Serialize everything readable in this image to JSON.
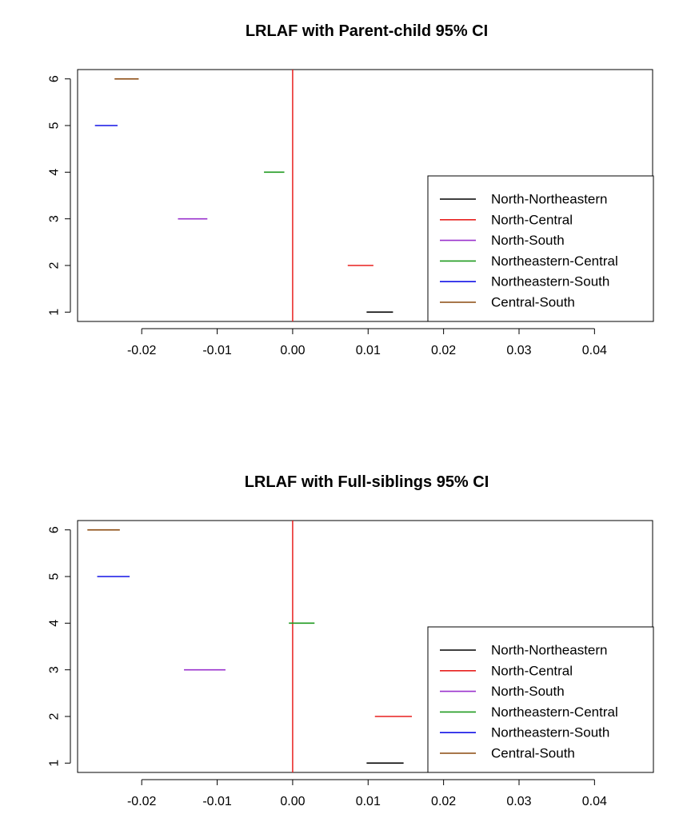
{
  "chart_data": [
    {
      "type": "interval",
      "title": "LRLAF with Parent-child 95% CI",
      "xlabel": "",
      "ylabel": "",
      "xlim": [
        -0.0285,
        0.0477
      ],
      "ylim": [
        0.8,
        6.2
      ],
      "x_ticks": [
        "-0.02",
        "-0.01",
        "0.00",
        "0.01",
        "0.02",
        "0.03",
        "0.04"
      ],
      "y_ticks": [
        "1",
        "2",
        "3",
        "4",
        "5",
        "6"
      ],
      "reference_line": {
        "x": 0.0,
        "color": "#e8201f"
      },
      "legend_position": "bottom-right",
      "series": [
        {
          "name": "North-Northeastern",
          "y": 1,
          "lower": 0.0098,
          "upper": 0.0133,
          "color": "#000000"
        },
        {
          "name": "North-Central",
          "y": 2,
          "lower": 0.0073,
          "upper": 0.0107,
          "color": "#e8201f"
        },
        {
          "name": "North-South",
          "y": 3,
          "lower": -0.0152,
          "upper": -0.0113,
          "color": "#9a32cd"
        },
        {
          "name": "Northeastern-Central",
          "y": 4,
          "lower": -0.0038,
          "upper": -0.0011,
          "color": "#1f9a1f"
        },
        {
          "name": "Northeastern-South",
          "y": 5,
          "lower": -0.0262,
          "upper": -0.0232,
          "color": "#1414e6"
        },
        {
          "name": "Central-South",
          "y": 6,
          "lower": -0.0236,
          "upper": -0.0204,
          "color": "#8b4a0f"
        }
      ]
    },
    {
      "type": "interval",
      "title": "LRLAF with Full-siblings 95% CI",
      "xlabel": "",
      "ylabel": "",
      "xlim": [
        -0.0285,
        0.0477
      ],
      "ylim": [
        0.8,
        6.2
      ],
      "x_ticks": [
        "-0.02",
        "-0.01",
        "0.00",
        "0.01",
        "0.02",
        "0.03",
        "0.04"
      ],
      "y_ticks": [
        "1",
        "2",
        "3",
        "4",
        "5",
        "6"
      ],
      "reference_line": {
        "x": 0.0,
        "color": "#e8201f"
      },
      "legend_position": "bottom-right",
      "series": [
        {
          "name": "North-Northeastern",
          "y": 1,
          "lower": 0.0098,
          "upper": 0.0147,
          "color": "#000000"
        },
        {
          "name": "North-Central",
          "y": 2,
          "lower": 0.0109,
          "upper": 0.0158,
          "color": "#e8201f"
        },
        {
          "name": "North-South",
          "y": 3,
          "lower": -0.0144,
          "upper": -0.0089,
          "color": "#9a32cd"
        },
        {
          "name": "Northeastern-Central",
          "y": 4,
          "lower": -0.0005,
          "upper": 0.0029,
          "color": "#1f9a1f"
        },
        {
          "name": "Northeastern-South",
          "y": 5,
          "lower": -0.0259,
          "upper": -0.0216,
          "color": "#1414e6"
        },
        {
          "name": "Central-South",
          "y": 6,
          "lower": -0.0272,
          "upper": -0.0229,
          "color": "#8b4a0f"
        }
      ]
    }
  ]
}
